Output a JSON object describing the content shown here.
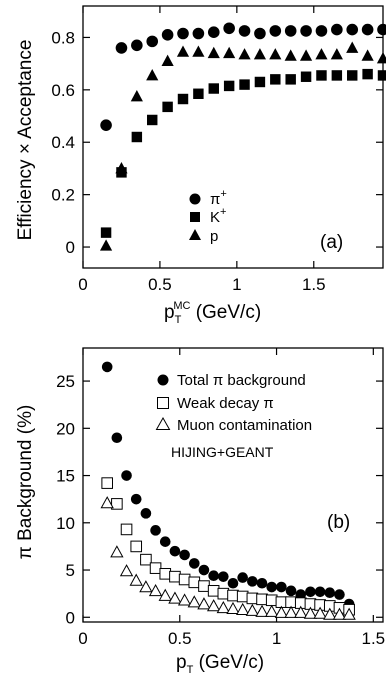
{
  "chart_data": [
    {
      "type": "scatter",
      "panel_label": "(a)",
      "xlabel": "p",
      "xlabel_sub": "T",
      "xlabel_sup": "MC",
      "xlabel_unit": " (GeV/c)",
      "ylabel": "Efficiency × Acceptance",
      "xlim": [
        0,
        1.95
      ],
      "ylim": [
        -0.08,
        0.92
      ],
      "xticks": [
        0,
        0.5,
        1,
        1.5
      ],
      "xtick_labels": [
        "0",
        "0.5",
        "1",
        "1.5"
      ],
      "yticks": [
        0,
        0.2,
        0.4,
        0.6,
        0.8
      ],
      "ytick_labels": [
        "0",
        "0.2",
        "0.4",
        "0.6",
        "0.8"
      ],
      "legend_position": "center-right",
      "series": [
        {
          "name": "π",
          "name_sup": "+",
          "marker": "circle",
          "x": [
            0.15,
            0.25,
            0.35,
            0.45,
            0.55,
            0.65,
            0.75,
            0.85,
            0.95,
            1.05,
            1.15,
            1.25,
            1.35,
            1.45,
            1.55,
            1.65,
            1.75,
            1.85,
            1.95
          ],
          "y": [
            0.465,
            0.76,
            0.77,
            0.785,
            0.81,
            0.815,
            0.815,
            0.82,
            0.835,
            0.825,
            0.815,
            0.825,
            0.825,
            0.825,
            0.825,
            0.83,
            0.83,
            0.83,
            0.83
          ]
        },
        {
          "name": "K",
          "name_sup": "+",
          "marker": "square",
          "x": [
            0.15,
            0.25,
            0.35,
            0.45,
            0.55,
            0.65,
            0.75,
            0.85,
            0.95,
            1.05,
            1.15,
            1.25,
            1.35,
            1.45,
            1.55,
            1.65,
            1.75,
            1.85,
            1.95
          ],
          "y": [
            0.055,
            0.285,
            0.42,
            0.485,
            0.535,
            0.565,
            0.585,
            0.605,
            0.615,
            0.62,
            0.63,
            0.64,
            0.64,
            0.65,
            0.655,
            0.655,
            0.655,
            0.66,
            0.655
          ]
        },
        {
          "name": "p",
          "name_sup": "",
          "marker": "triangle",
          "x": [
            0.15,
            0.25,
            0.35,
            0.45,
            0.55,
            0.65,
            0.75,
            0.85,
            0.95,
            1.05,
            1.15,
            1.25,
            1.35,
            1.45,
            1.55,
            1.65,
            1.75,
            1.85,
            1.95
          ],
          "y": [
            0.005,
            0.3,
            0.575,
            0.655,
            0.71,
            0.745,
            0.745,
            0.74,
            0.74,
            0.735,
            0.735,
            0.735,
            0.73,
            0.73,
            0.735,
            0.735,
            0.76,
            0.73,
            0.72
          ]
        }
      ]
    },
    {
      "type": "scatter",
      "panel_label": "(b)",
      "annotation": "HIJING+GEANT",
      "xlabel": "p",
      "xlabel_sub": "T",
      "xlabel_unit": " (GeV/c)",
      "ylabel": "π Background (%)",
      "xlim": [
        0,
        1.55
      ],
      "ylim": [
        -0.5,
        28.5
      ],
      "xticks": [
        0,
        0.5,
        1,
        1.5
      ],
      "xtick_labels": [
        "0",
        "0.5",
        "1",
        "1.5"
      ],
      "yticks": [
        0,
        5,
        10,
        15,
        20,
        25
      ],
      "ytick_labels": [
        "0",
        "5",
        "10",
        "15",
        "20",
        "25"
      ],
      "legend_position": "top-right",
      "series": [
        {
          "name": "Total π background",
          "marker": "circle",
          "x": [
            0.125,
            0.175,
            0.225,
            0.275,
            0.325,
            0.375,
            0.425,
            0.475,
            0.525,
            0.575,
            0.625,
            0.675,
            0.725,
            0.775,
            0.825,
            0.875,
            0.925,
            0.975,
            1.025,
            1.075,
            1.125,
            1.175,
            1.225,
            1.275,
            1.325,
            1.375
          ],
          "y": [
            26.5,
            19.0,
            15.0,
            12.5,
            11.0,
            9.2,
            8.0,
            7.0,
            6.6,
            5.7,
            5.0,
            4.4,
            4.3,
            3.6,
            4.2,
            3.8,
            3.6,
            3.2,
            3.2,
            2.8,
            2.4,
            2.7,
            2.7,
            2.6,
            2.4,
            1.4
          ]
        },
        {
          "name": "Weak decay π",
          "marker": "open-square",
          "x": [
            0.125,
            0.175,
            0.225,
            0.275,
            0.325,
            0.375,
            0.425,
            0.475,
            0.525,
            0.575,
            0.625,
            0.675,
            0.725,
            0.775,
            0.825,
            0.875,
            0.925,
            0.975,
            1.025,
            1.075,
            1.125,
            1.175,
            1.225,
            1.275,
            1.325,
            1.375
          ],
          "y": [
            14.2,
            12.0,
            9.3,
            7.5,
            6.1,
            5.2,
            4.6,
            4.3,
            4.0,
            3.7,
            3.3,
            2.8,
            2.5,
            2.3,
            2.2,
            2.0,
            1.9,
            1.8,
            1.6,
            1.6,
            1.5,
            1.4,
            1.3,
            1.2,
            1.0,
            0.8
          ]
        },
        {
          "name": "Muon contamination",
          "marker": "open-triangle",
          "x": [
            0.125,
            0.175,
            0.225,
            0.275,
            0.325,
            0.375,
            0.425,
            0.475,
            0.525,
            0.575,
            0.625,
            0.675,
            0.725,
            0.775,
            0.825,
            0.875,
            0.925,
            0.975,
            1.025,
            1.075,
            1.125,
            1.175,
            1.225,
            1.275,
            1.325,
            1.375
          ],
          "y": [
            12.1,
            6.9,
            4.9,
            3.9,
            3.2,
            2.8,
            2.3,
            2.0,
            1.8,
            1.6,
            1.4,
            1.2,
            1.0,
            0.9,
            0.8,
            0.7,
            0.6,
            0.6,
            0.5,
            0.5,
            0.5,
            0.4,
            0.4,
            0.3,
            0.3,
            0.3
          ]
        }
      ]
    }
  ]
}
